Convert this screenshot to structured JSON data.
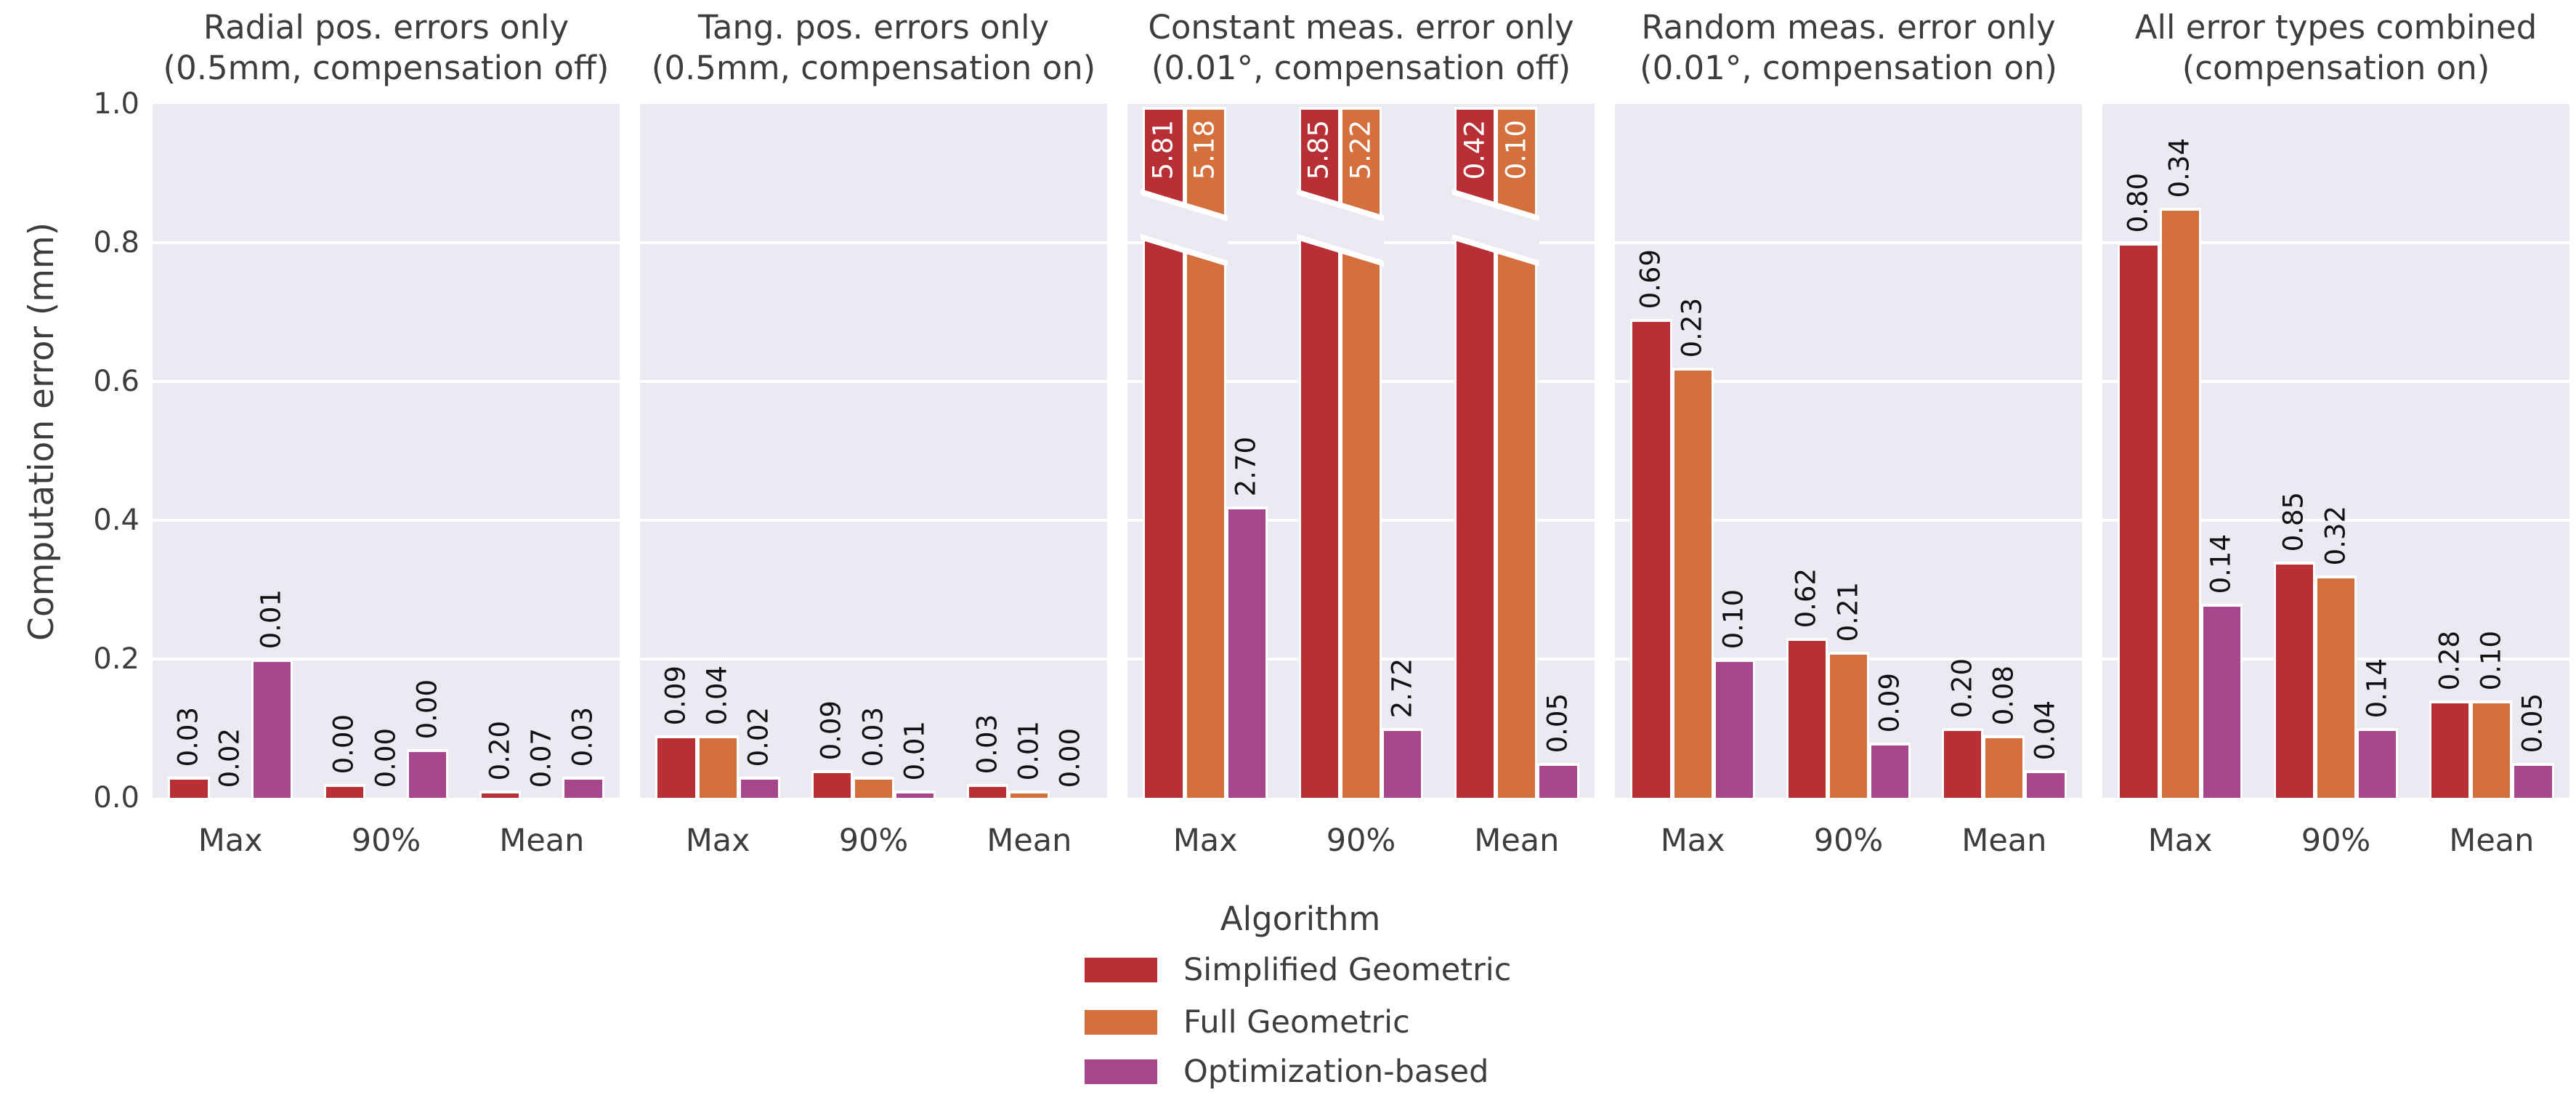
{
  "figure": {
    "y_axis": {
      "label": "Computation error (mm)",
      "ticks": [
        "1.0",
        "0.8",
        "0.6",
        "0.4",
        "0.2",
        "0.0"
      ]
    },
    "legend": {
      "title": "Algorithm",
      "entries": [
        {
          "label": "Simplified Geometric",
          "color": "#b83036"
        },
        {
          "label": "Full Geometric",
          "color": "#d3703d"
        },
        {
          "label": "Optimization-based",
          "color": "#a7468c"
        }
      ]
    },
    "colors": {
      "plot_background": "#eaeaf2",
      "grid": "#ffffff",
      "text": "#3d3d3d",
      "bar_label": "#111111",
      "bar_label_inside": "#ffffff"
    }
  },
  "chart_data": {
    "type": "bar",
    "categories": [
      "Max",
      "90%",
      "Mean"
    ],
    "ylabel": "Computation error (mm)",
    "ylim": [
      0.0,
      1.0
    ],
    "yticks": [
      0.0,
      0.2,
      0.4,
      0.6,
      0.8,
      1.0
    ],
    "grid": "horizontal-white-on-lavender",
    "legend_position": "bottom-center",
    "legend_title": "Algorithm",
    "series_names": [
      "Simplified Geometric",
      "Full Geometric",
      "Optimization-based"
    ],
    "series_colors": [
      "#b83036",
      "#d3703d",
      "#a7468c"
    ],
    "broken_bar_note": "values above ylim max 1.0 are drawn full height with a diagonal axis-break band and white value labels inside the bar top",
    "panels": [
      {
        "title": [
          "Radial pos. errors only",
          "(0.5mm, compensation off)"
        ],
        "series": [
          {
            "name": "Simplified Geometric",
            "values": [
              0.03,
              0.02,
              0.01
            ]
          },
          {
            "name": "Full Geometric",
            "values": [
              0.0,
              0.0,
              0.0
            ]
          },
          {
            "name": "Optimization-based",
            "values": [
              0.2,
              0.07,
              0.03
            ]
          }
        ],
        "value_labels": [
          [
            "0.03",
            "0.00",
            "0.20"
          ],
          [
            "0.02",
            "0.00",
            "0.07"
          ],
          [
            "0.01",
            "0.00",
            "0.03"
          ]
        ]
      },
      {
        "title": [
          "Tang. pos. errors only",
          "(0.5mm, compensation on)"
        ],
        "series": [
          {
            "name": "Simplified Geometric",
            "values": [
              0.09,
              0.04,
              0.02
            ]
          },
          {
            "name": "Full Geometric",
            "values": [
              0.09,
              0.03,
              0.01
            ]
          },
          {
            "name": "Optimization-based",
            "values": [
              0.03,
              0.01,
              0.0
            ]
          }
        ],
        "value_labels": [
          [
            "0.09",
            "0.09",
            "0.03"
          ],
          [
            "0.04",
            "0.03",
            "0.01"
          ],
          [
            "0.02",
            "0.01",
            "0.00"
          ]
        ]
      },
      {
        "title": [
          "Constant meas. error only",
          "(0.01°, compensation off)"
        ],
        "series": [
          {
            "name": "Simplified Geometric",
            "values": [
              5.81,
              5.18,
              2.7
            ]
          },
          {
            "name": "Full Geometric",
            "values": [
              5.85,
              5.22,
              2.72
            ]
          },
          {
            "name": "Optimization-based",
            "values": [
              0.42,
              0.1,
              0.05
            ]
          }
        ],
        "value_labels": [
          [
            "5.81",
            "5.85",
            "0.42"
          ],
          [
            "5.18",
            "5.22",
            "0.10"
          ],
          [
            "2.70",
            "2.72",
            "0.05"
          ]
        ]
      },
      {
        "title": [
          "Random meas. error only",
          "(0.01°, compensation on)"
        ],
        "series": [
          {
            "name": "Simplified Geometric",
            "values": [
              0.69,
              0.23,
              0.1
            ]
          },
          {
            "name": "Full Geometric",
            "values": [
              0.62,
              0.21,
              0.09
            ]
          },
          {
            "name": "Optimization-based",
            "values": [
              0.2,
              0.08,
              0.04
            ]
          }
        ],
        "value_labels": [
          [
            "0.69",
            "0.62",
            "0.20"
          ],
          [
            "0.23",
            "0.21",
            "0.08"
          ],
          [
            "0.10",
            "0.09",
            "0.04"
          ]
        ]
      },
      {
        "title": [
          "All error types combined",
          "(compensation on)"
        ],
        "series": [
          {
            "name": "Simplified Geometric",
            "values": [
              0.8,
              0.34,
              0.14
            ]
          },
          {
            "name": "Full Geometric",
            "values": [
              0.85,
              0.32,
              0.14
            ]
          },
          {
            "name": "Optimization-based",
            "values": [
              0.28,
              0.1,
              0.05
            ]
          }
        ],
        "value_labels": [
          [
            "0.80",
            "0.85",
            "0.28"
          ],
          [
            "0.34",
            "0.32",
            "0.10"
          ],
          [
            "0.14",
            "0.14",
            "0.05"
          ]
        ]
      }
    ]
  }
}
